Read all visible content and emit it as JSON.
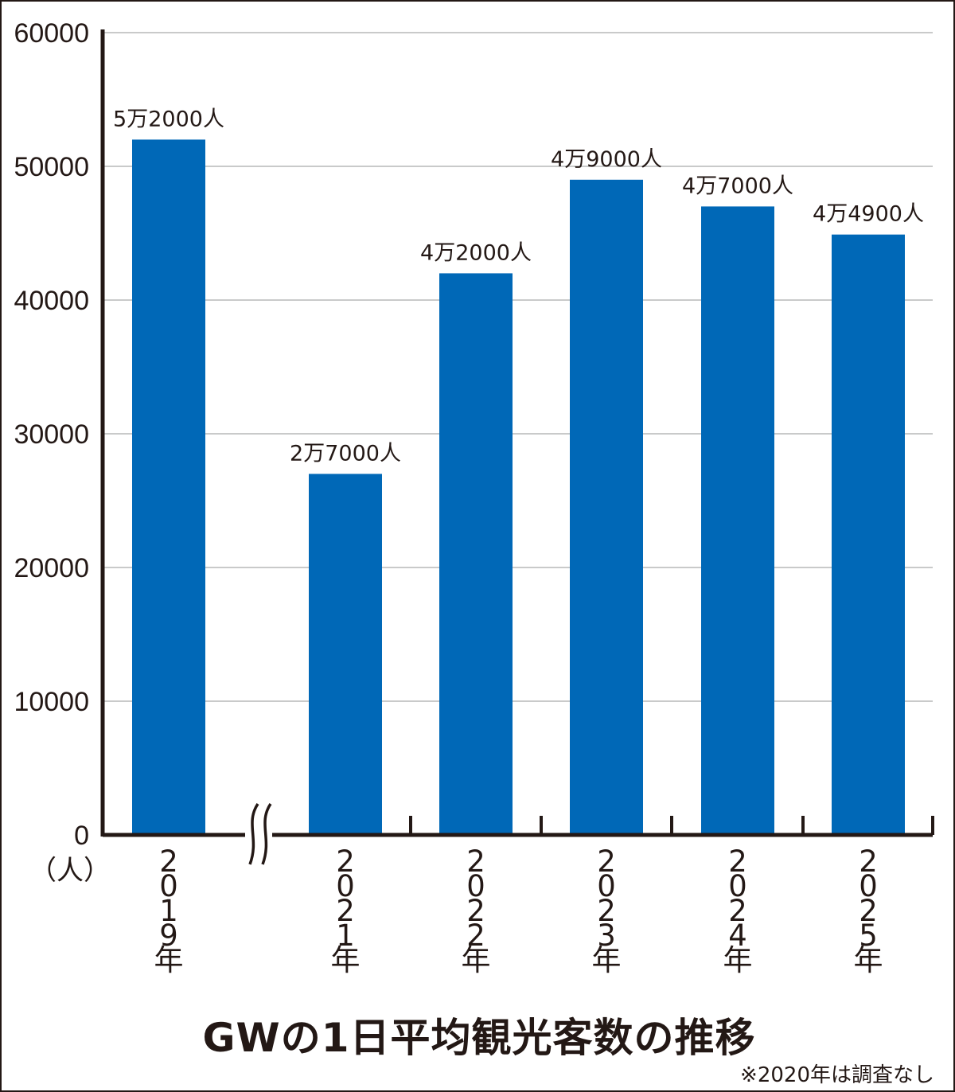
{
  "chart_data": {
    "type": "bar",
    "title": "GWの1日平均観光客数の推移",
    "note": "※2020年は調査なし",
    "ylabel": "（人）",
    "xlabel": "",
    "ylim": [
      0,
      60000
    ],
    "yticks": [
      "0",
      "10000",
      "20000",
      "30000",
      "40000",
      "50000",
      "60000"
    ],
    "grid": true,
    "axis_break": "between 2019年 and 2021年",
    "bar_color": "#0068b7",
    "categories": [
      "2019年",
      "2021年",
      "2022年",
      "2023年",
      "2024年",
      "2025年"
    ],
    "values": [
      52000,
      27000,
      42000,
      49000,
      47000,
      44900
    ],
    "data_labels": [
      "5万2000人",
      "2万7000人",
      "4万2000人",
      "4万9000人",
      "4万7000人",
      "4万4900人"
    ]
  }
}
